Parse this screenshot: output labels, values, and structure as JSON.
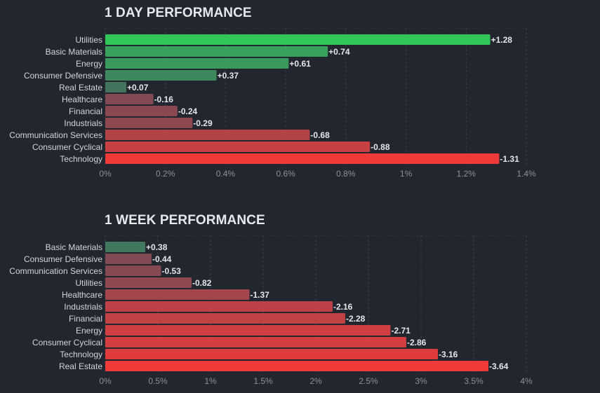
{
  "chart_data": [
    {
      "type": "bar",
      "orientation": "horizontal",
      "title": "1 DAY PERFORMANCE",
      "categories": [
        "Utilities",
        "Basic Materials",
        "Energy",
        "Consumer Defensive",
        "Real Estate",
        "Healthcare",
        "Financial",
        "Industrials",
        "Communication Services",
        "Consumer Cyclical",
        "Technology"
      ],
      "values": [
        1.28,
        0.74,
        0.61,
        0.37,
        0.07,
        -0.16,
        -0.24,
        -0.29,
        -0.68,
        -0.88,
        -1.31
      ],
      "value_labels": [
        "+1.28",
        "+0.74",
        "+0.61",
        "+0.37",
        "+0.07",
        "-0.16",
        "-0.24",
        "-0.29",
        "-0.68",
        "-0.88",
        "-1.31"
      ],
      "xlim": [
        0,
        1.4
      ],
      "xticks": [
        "0%",
        "0.2%",
        "0.4%",
        "0.6%",
        "0.8%",
        "1%",
        "1.2%",
        "1.4%"
      ],
      "xlabel": "",
      "ylabel": "",
      "grid": true,
      "colors": {
        "positive": "#30c85a",
        "negative": "#f03a3a",
        "neutral": "#4a5260"
      }
    },
    {
      "type": "bar",
      "orientation": "horizontal",
      "title": "1 WEEK PERFORMANCE",
      "categories": [
        "Basic Materials",
        "Consumer Defensive",
        "Communication Services",
        "Utilities",
        "Healthcare",
        "Industrials",
        "Financial",
        "Energy",
        "Consumer Cyclical",
        "Technology",
        "Real Estate"
      ],
      "values": [
        0.38,
        -0.44,
        -0.53,
        -0.82,
        -1.37,
        -2.16,
        -2.28,
        -2.71,
        -2.86,
        -3.16,
        -3.64
      ],
      "value_labels": [
        "+0.38",
        "-0.44",
        "-0.53",
        "-0.82",
        "-1.37",
        "-2.16",
        "-2.28",
        "-2.71",
        "-2.86",
        "-3.16",
        "-3.64"
      ],
      "xlim": [
        0,
        4
      ],
      "xticks": [
        "0%",
        "0.5%",
        "1%",
        "1.5%",
        "2%",
        "2.5%",
        "3%",
        "3.5%",
        "4%"
      ],
      "xlabel": "",
      "ylabel": "",
      "grid": true,
      "colors": {
        "positive": "#30c85a",
        "negative": "#f03a3a",
        "neutral": "#4a5260"
      }
    }
  ]
}
